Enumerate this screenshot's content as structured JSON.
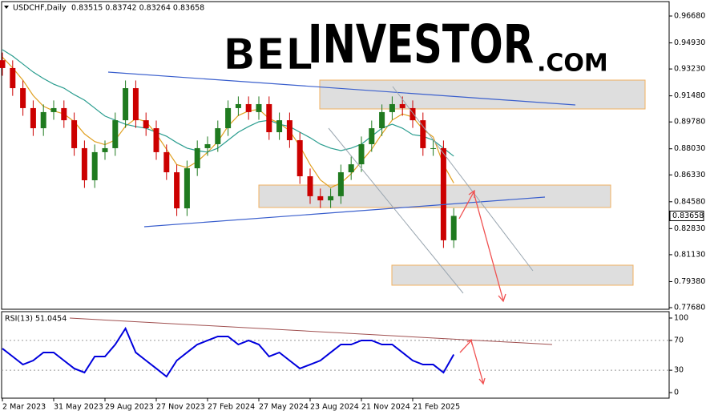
{
  "logo": {
    "part1": "BEL",
    "part2": "INVESTOR",
    "part3": ".COM"
  },
  "chart_data": [
    {
      "type": "candlestick",
      "title": "USDCHF,Daily",
      "subtitle": "0.83515 0.83742 0.83264 0.83658",
      "categories": [
        "2 Mar 2023",
        null,
        null,
        null,
        null,
        "31 May 2023",
        null,
        null,
        null,
        null,
        "29 Aug 2023",
        null,
        null,
        null,
        null,
        "27 Nov 2023",
        null,
        null,
        null,
        null,
        "27 Feb 2024",
        null,
        null,
        null,
        null,
        "27 May 2024",
        null,
        null,
        null,
        null,
        "23 Aug 2024",
        null,
        null,
        null,
        null,
        "21 Nov 2024",
        null,
        null,
        null,
        null,
        "21 Feb 2025",
        null,
        null,
        null,
        null
      ],
      "open": [
        0.938,
        0.9329,
        0.9198,
        0.9068,
        0.8937,
        0.9042,
        0.9068,
        0.8989,
        0.8807,
        0.8598,
        0.8781,
        0.8807,
        0.8989,
        0.9198,
        0.8989,
        0.8937,
        0.8781,
        0.865,
        0.8415,
        0.8676,
        0.8807,
        0.8833,
        0.8937,
        0.9068,
        0.9094,
        0.9042,
        0.9094,
        0.8911,
        0.8989,
        0.8859,
        0.8624,
        0.8494,
        0.8467,
        0.8494,
        0.865,
        0.8702,
        0.8833,
        0.8937,
        0.9042,
        0.9094,
        0.9068,
        0.8989,
        0.8807,
        0.8807,
        0.8207
      ],
      "high": [
        0.943,
        0.9379,
        0.9248,
        0.9118,
        0.9092,
        0.9118,
        0.9118,
        0.9039,
        0.8857,
        0.8831,
        0.8857,
        0.9039,
        0.9248,
        0.9248,
        0.9039,
        0.8987,
        0.8831,
        0.87,
        0.8726,
        0.8857,
        0.8883,
        0.8987,
        0.9118,
        0.9144,
        0.9144,
        0.9144,
        0.9144,
        0.9039,
        0.9039,
        0.8909,
        0.8674,
        0.8544,
        0.8544,
        0.87,
        0.8752,
        0.8883,
        0.8987,
        0.9092,
        0.9144,
        0.9144,
        0.9118,
        0.9039,
        0.8857,
        0.8857,
        0.8416
      ],
      "low": [
        0.9279,
        0.9148,
        0.9018,
        0.8887,
        0.8887,
        0.8992,
        0.8939,
        0.8757,
        0.8548,
        0.8548,
        0.8731,
        0.8757,
        0.8939,
        0.8939,
        0.8887,
        0.8731,
        0.86,
        0.8365,
        0.8365,
        0.8626,
        0.8757,
        0.8783,
        0.8887,
        0.9018,
        0.8992,
        0.8992,
        0.8861,
        0.8861,
        0.8809,
        0.8574,
        0.8444,
        0.8417,
        0.8417,
        0.8444,
        0.86,
        0.8652,
        0.8783,
        0.8887,
        0.8992,
        0.9018,
        0.8939,
        0.8757,
        0.8757,
        0.8157,
        0.8157
      ],
      "close": [
        0.9329,
        0.9198,
        0.9068,
        0.8937,
        0.9042,
        0.9068,
        0.8989,
        0.8807,
        0.8598,
        0.8781,
        0.8807,
        0.8989,
        0.9198,
        0.8989,
        0.8937,
        0.8781,
        0.865,
        0.8415,
        0.8676,
        0.8807,
        0.8833,
        0.8937,
        0.9068,
        0.9094,
        0.9042,
        0.9094,
        0.8911,
        0.8989,
        0.8859,
        0.8624,
        0.8494,
        0.8467,
        0.8494,
        0.865,
        0.8702,
        0.8833,
        0.8937,
        0.9042,
        0.9094,
        0.9068,
        0.8989,
        0.8807,
        0.8807,
        0.8207,
        0.83658
      ],
      "up_color": "#1f7a1f",
      "down_color": "#cc0000",
      "overlays": [
        {
          "color": "#e0a020",
          "values": [
            0.94,
            0.933,
            0.925,
            0.915,
            0.908,
            0.905,
            0.903,
            0.898,
            0.89,
            0.885,
            0.883,
            0.886,
            0.895,
            0.9,
            0.898,
            0.89,
            0.88,
            0.87,
            0.868,
            0.872,
            0.878,
            0.885,
            0.895,
            0.902,
            0.905,
            0.906,
            0.9,
            0.897,
            0.892,
            0.882,
            0.87,
            0.86,
            0.855,
            0.858,
            0.864,
            0.872,
            0.88,
            0.89,
            0.899,
            0.903,
            0.901,
            0.893,
            0.888,
            0.87,
            0.858
          ]
        },
        {
          "color": "#2a9d8f",
          "values": [
            0.9449,
            0.9407,
            0.9355,
            0.9303,
            0.9261,
            0.9224,
            0.9198,
            0.9156,
            0.912,
            0.9068,
            0.9016,
            0.8989,
            0.8963,
            0.8948,
            0.8937,
            0.8911,
            0.8885,
            0.8843,
            0.8807,
            0.8791,
            0.8781,
            0.8807,
            0.8859,
            0.8911,
            0.8948,
            0.8979,
            0.8989,
            0.8963,
            0.8948,
            0.8911,
            0.8875,
            0.8833,
            0.8807,
            0.8791,
            0.8807,
            0.8833,
            0.8885,
            0.8937,
            0.8963,
            0.8937,
            0.8895,
            0.8885,
            0.8859,
            0.8807,
            0.8755
          ]
        }
      ],
      "last_price": 0.83658,
      "ylim": [
        0.77576,
        0.97515
      ],
      "yticks": [
        {
          "value": 0.9668,
          "label": "0.96680"
        },
        {
          "value": 0.9493,
          "label": "0.94930"
        },
        {
          "value": 0.9323,
          "label": "0.93230"
        },
        {
          "value": 0.9148,
          "label": "0.91480"
        },
        {
          "value": 0.8978,
          "label": "0.89780"
        },
        {
          "value": 0.8803,
          "label": "0.88030"
        },
        {
          "value": 0.8633,
          "label": "0.86330"
        },
        {
          "value": 0.8458,
          "label": "0.84580"
        },
        {
          "value": 0.8283,
          "label": "0.82830"
        },
        {
          "value": 0.8113,
          "label": "0.81130"
        },
        {
          "value": 0.7938,
          "label": "0.79380"
        },
        {
          "value": 0.7768,
          "label": "0.77680"
        }
      ]
    },
    {
      "type": "line",
      "title": "RSI(13) 51.0454",
      "color": "#0000dd",
      "values": [
        59.1,
        48.4,
        37.6,
        43.0,
        53.8,
        53.8,
        43.0,
        32.3,
        26.9,
        48.4,
        48.4,
        64.5,
        86.0,
        53.8,
        43.0,
        32.3,
        21.5,
        43.0,
        53.8,
        64.5,
        69.9,
        75.3,
        75.3,
        64.5,
        69.9,
        64.5,
        48.4,
        53.8,
        43.0,
        32.3,
        37.6,
        43.0,
        53.8,
        64.5,
        64.5,
        69.9,
        69.9,
        64.5,
        64.5,
        53.8,
        43.0,
        37.6,
        37.6,
        26.9,
        51.0454
      ],
      "ylim": [
        -7.5,
        107.5
      ],
      "yticks": [
        0,
        30,
        70,
        100
      ],
      "grid": true
    }
  ]
}
